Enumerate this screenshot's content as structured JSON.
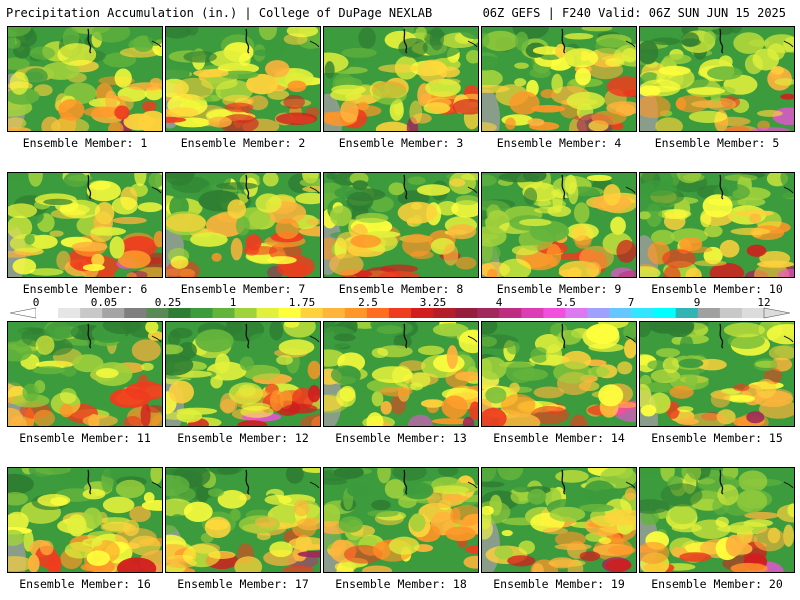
{
  "header": {
    "title": "Precipitation Accumulation (in.) | College of DuPage NEXLAB",
    "run_info": "06Z GEFS | F240 Valid: 06Z SUN JUN 15 2025"
  },
  "colorbar": {
    "labels": [
      "0",
      "0.05",
      "0.25",
      "1",
      "1.75",
      "2.5",
      "3.25",
      "4",
      "5.5",
      "7",
      "9",
      "12"
    ],
    "colors": [
      "#ffffff",
      "#e6e6e6",
      "#c8c8c8",
      "#a5a5a5",
      "#7f7f7f",
      "#5a8a55",
      "#2e7d32",
      "#3c9b3c",
      "#64b43c",
      "#a0d23c",
      "#e1f03c",
      "#ffff3c",
      "#ffd23c",
      "#ffb43c",
      "#ff9628",
      "#ff6e1e",
      "#f03c1e",
      "#d21e1e",
      "#b41e28",
      "#961e3c",
      "#a0285a",
      "#be2d82",
      "#dc3cb4",
      "#f050dc",
      "#dc78f0",
      "#a0a0ff",
      "#64c8ff",
      "#32e6ff",
      "#00ffff",
      "#32b4b4",
      "#a0a0a0",
      "#c8c8c8",
      "#dcdcdc"
    ]
  },
  "members": [
    {
      "label": "Ensemble Member: 1"
    },
    {
      "label": "Ensemble Member: 2"
    },
    {
      "label": "Ensemble Member: 3"
    },
    {
      "label": "Ensemble Member: 4"
    },
    {
      "label": "Ensemble Member: 5"
    },
    {
      "label": "Ensemble Member: 6"
    },
    {
      "label": "Ensemble Member: 7"
    },
    {
      "label": "Ensemble Member: 8"
    },
    {
      "label": "Ensemble Member: 9"
    },
    {
      "label": "Ensemble Member: 10"
    },
    {
      "label": "Ensemble Member: 11"
    },
    {
      "label": "Ensemble Member: 12"
    },
    {
      "label": "Ensemble Member: 13"
    },
    {
      "label": "Ensemble Member: 14"
    },
    {
      "label": "Ensemble Member: 15"
    },
    {
      "label": "Ensemble Member: 16"
    },
    {
      "label": "Ensemble Member: 17"
    },
    {
      "label": "Ensemble Member: 18"
    },
    {
      "label": "Ensemble Member: 19"
    },
    {
      "label": "Ensemble Member: 20"
    }
  ]
}
